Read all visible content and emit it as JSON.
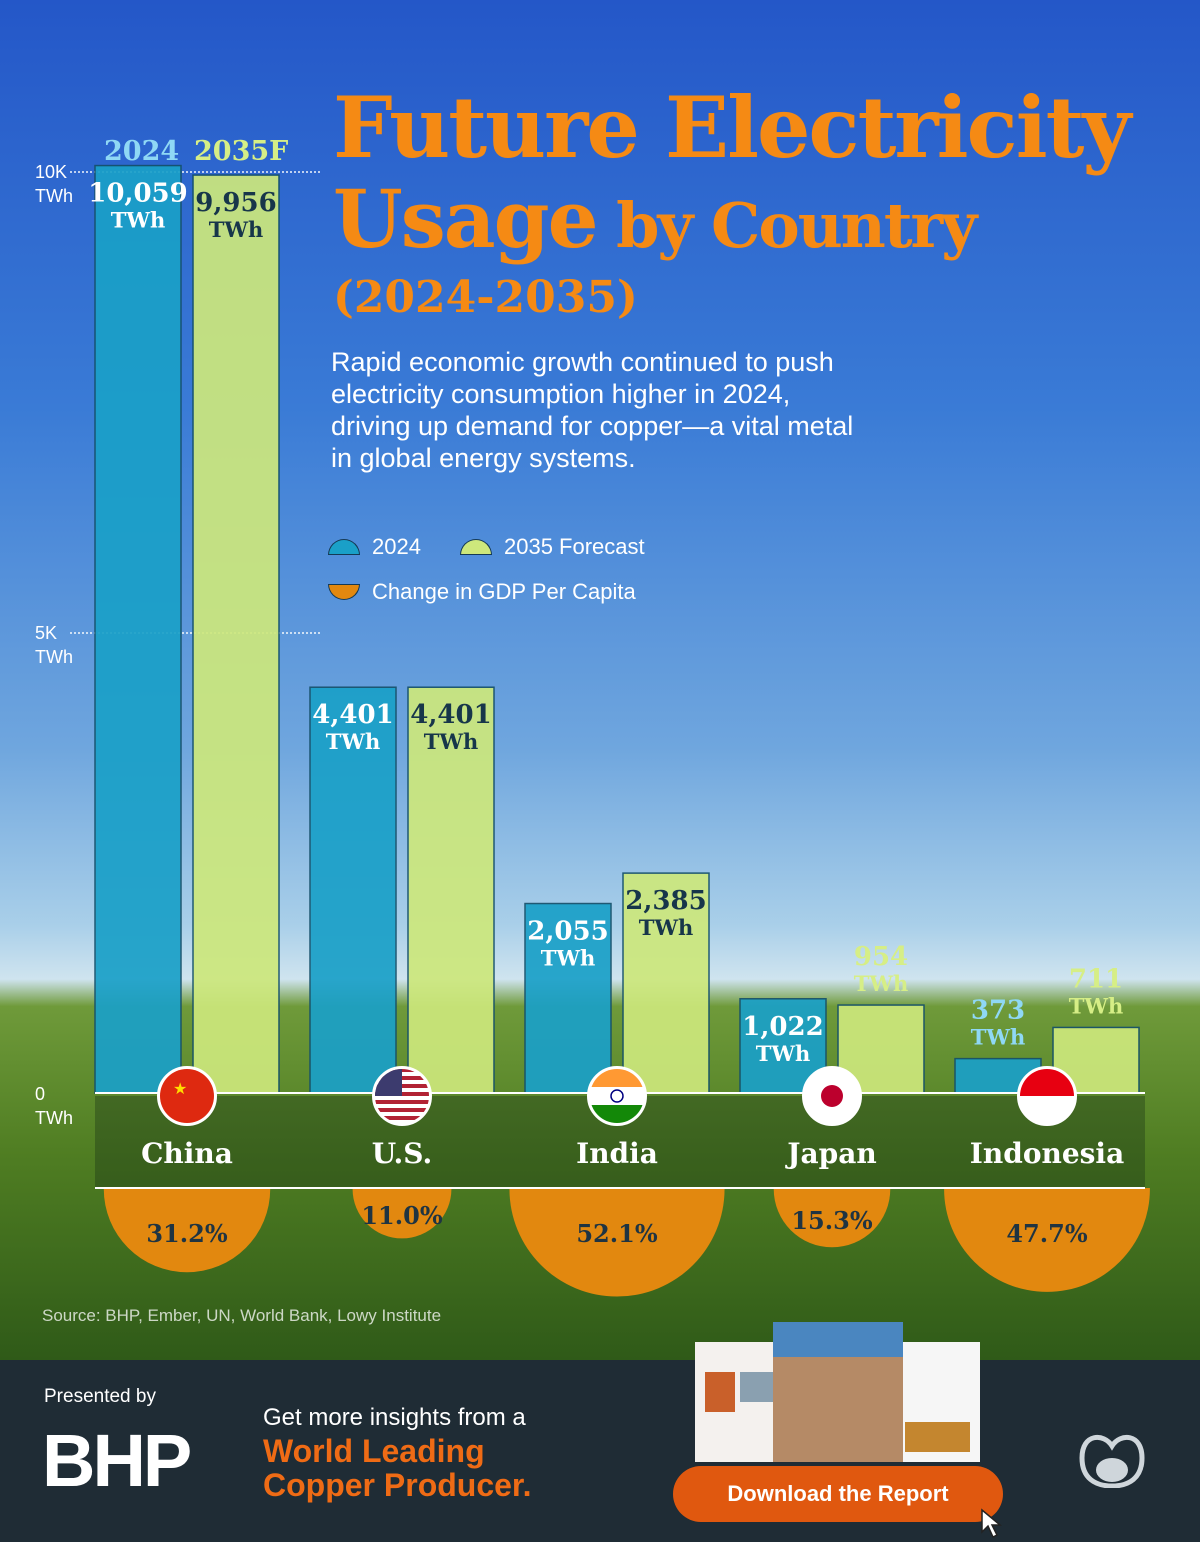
{
  "title": {
    "line1": "Future Electricity",
    "line2a": "Usage",
    "line2b": " by Country",
    "line3": "(2024-2035)"
  },
  "subtitle": "Rapid economic growth continued to push electricity consumption higher in 2024, driving up demand for copper—a vital metal in global energy systems.",
  "legend": {
    "s2024": "2024",
    "s2035": "2035 Forecast",
    "gdp": "Change in GDP Per Capita"
  },
  "source": "Source: BHP, Ember, UN, World Bank, Lowy Institute",
  "footer": {
    "presented_by": "Presented by",
    "brand": "BHP",
    "cta_line1": "Get more insights from a",
    "cta_line2": "World Leading",
    "cta_line3": "Copper Producer.",
    "button": "Download the Report"
  },
  "colors": {
    "s2024": "#1aa0c8",
    "s2035": "#cde87c",
    "gdp": "#e2880f",
    "title": "#f58a14"
  },
  "chart_data": {
    "type": "bar",
    "categories": [
      "China",
      "U.S.",
      "India",
      "Japan",
      "Indonesia"
    ],
    "column_headers": [
      "2024",
      "2035F"
    ],
    "unit": "TWh",
    "ylim": [
      0,
      10000
    ],
    "yticks": [
      {
        "value": 0,
        "label": "0",
        "unit": "TWh"
      },
      {
        "value": 5000,
        "label": "5K",
        "unit": "TWh"
      },
      {
        "value": 10000,
        "label": "10K",
        "unit": "TWh"
      }
    ],
    "series": [
      {
        "name": "2024",
        "values": [
          10059,
          4401,
          2055,
          1022,
          373
        ],
        "labels": [
          "10,059",
          "4,401",
          "2,055",
          "1,022",
          "373"
        ]
      },
      {
        "name": "2035 Forecast",
        "values": [
          9956,
          4401,
          2385,
          954,
          711
        ],
        "labels": [
          "9,956",
          "4,401",
          "2,385",
          "954",
          "711"
        ]
      }
    ],
    "gdp_change": {
      "name": "Change in GDP Per Capita",
      "values": [
        31.2,
        11.0,
        52.1,
        15.3,
        47.7
      ],
      "labels": [
        "31.2%",
        "11.0%",
        "52.1%",
        "15.3%",
        "47.7%"
      ]
    },
    "flags": [
      "china-flag",
      "us-flag",
      "india-flag",
      "japan-flag",
      "indonesia-flag"
    ]
  }
}
